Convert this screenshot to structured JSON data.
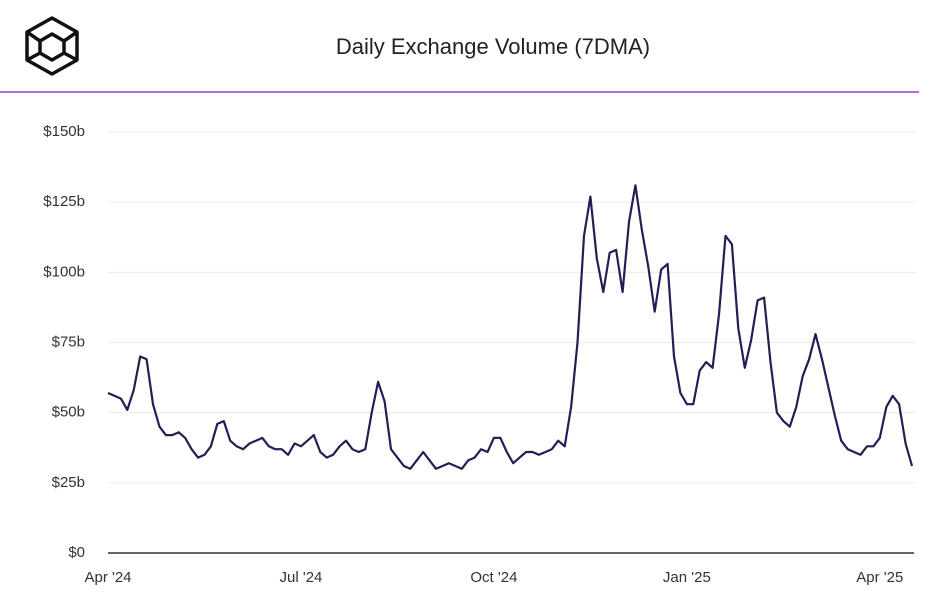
{
  "chart_data": {
    "type": "line",
    "title": "Daily Exchange Volume (7DMA)",
    "categories": [
      "Apr '24",
      null,
      null,
      null,
      null,
      null,
      null,
      null,
      null,
      null,
      null,
      null,
      null,
      null,
      null,
      null,
      null,
      null,
      null,
      null,
      null,
      null,
      null,
      null,
      null,
      null,
      null,
      null,
      null,
      null,
      "Jul '24",
      null,
      null,
      null,
      null,
      null,
      null,
      null,
      null,
      null,
      null,
      null,
      null,
      null,
      null,
      null,
      null,
      null,
      null,
      null,
      null,
      null,
      null,
      null,
      null,
      null,
      null,
      null,
      null,
      null,
      "Oct '24",
      null,
      null,
      null,
      null,
      null,
      null,
      null,
      null,
      null,
      null,
      null,
      null,
      null,
      null,
      null,
      null,
      null,
      null,
      null,
      null,
      null,
      null,
      null,
      null,
      null,
      null,
      null,
      null,
      null,
      "Jan '25",
      null,
      null,
      null,
      null,
      null,
      null,
      null,
      null,
      null,
      null,
      null,
      null,
      null,
      null,
      null,
      null,
      null,
      null,
      null,
      null,
      null,
      null,
      null,
      null,
      null,
      null,
      null,
      null,
      null,
      "Apr '25",
      null,
      null,
      null,
      null,
      null
    ],
    "series": [
      {
        "color": "#231f54",
        "values": [
          57,
          56,
          55,
          51,
          58,
          70,
          69,
          53,
          45,
          42,
          42,
          43,
          41,
          37,
          34,
          35,
          38,
          46,
          47,
          40,
          38,
          37,
          39,
          40,
          41,
          38,
          37,
          37,
          35,
          39,
          38,
          40,
          42,
          36,
          34,
          35,
          38,
          40,
          37,
          36,
          37,
          50,
          61,
          54,
          37,
          34,
          31,
          30,
          33,
          36,
          33,
          30,
          31,
          32,
          31,
          30,
          33,
          34,
          37,
          36,
          41,
          41,
          36,
          32,
          34,
          36,
          36,
          35,
          36,
          37,
          40,
          38,
          52,
          75,
          113,
          127,
          105,
          93,
          107,
          108,
          93,
          118,
          131,
          115,
          102,
          86,
          101,
          103,
          70,
          57,
          53,
          53,
          65,
          68,
          66,
          85,
          113,
          110,
          80,
          66,
          76,
          90,
          91,
          68,
          50,
          47,
          45,
          52,
          63,
          69,
          78,
          69,
          59,
          49,
          40,
          37,
          36,
          35,
          38,
          38,
          41,
          52,
          56,
          53,
          39,
          31
        ]
      }
    ],
    "ylim": [
      0,
      150
    ],
    "yticks": [
      {
        "value": 0,
        "label": "$0"
      },
      {
        "value": 25,
        "label": "$25b"
      },
      {
        "value": 50,
        "label": "$50b"
      },
      {
        "value": 75,
        "label": "$75b"
      },
      {
        "value": 100,
        "label": "$100b"
      },
      {
        "value": 125,
        "label": "$125b"
      },
      {
        "value": 150,
        "label": "$150b"
      }
    ],
    "grid": true
  }
}
